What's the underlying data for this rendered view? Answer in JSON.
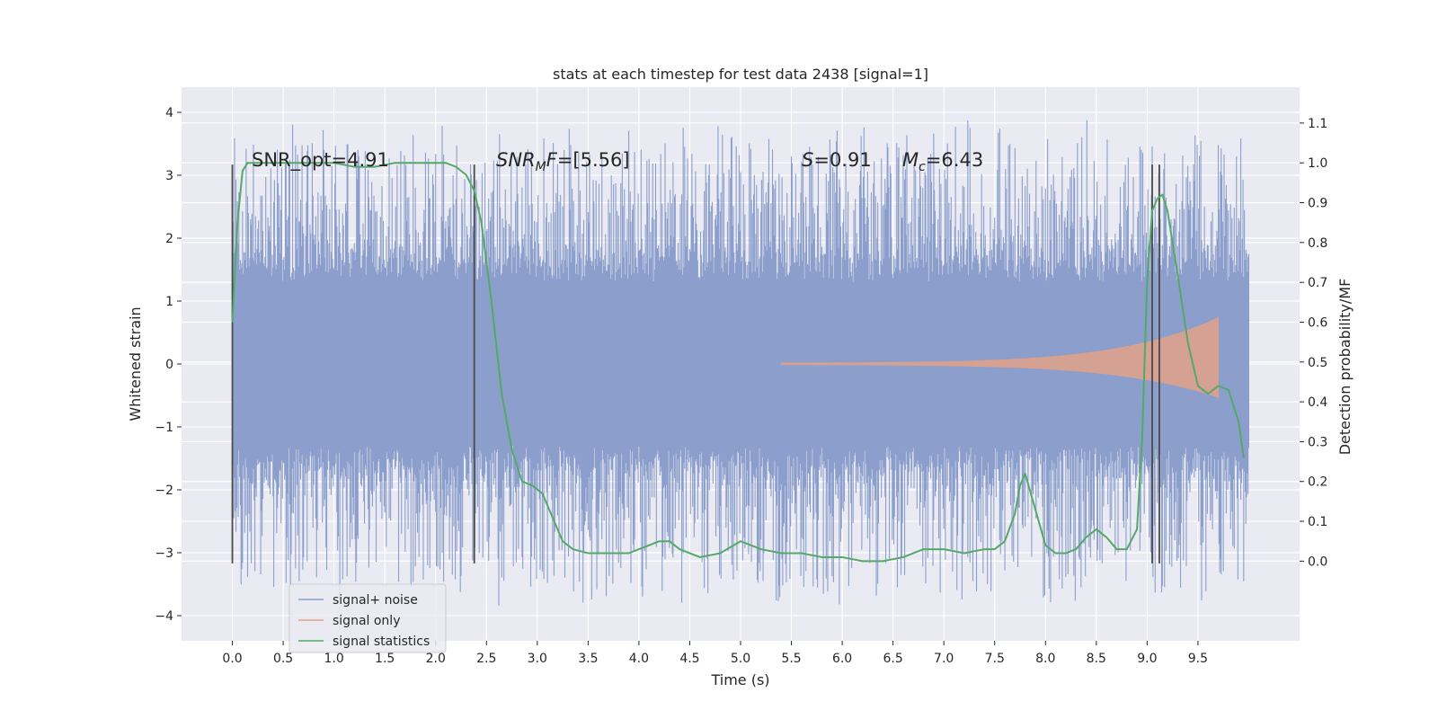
{
  "chart_data": {
    "type": "line",
    "title": "stats at each timestep for test data 2438 [signal=1]",
    "xlabel": "Time (s)",
    "ylabel": "Whitened strain",
    "y2label": "Detection probability/MF",
    "xlim": [
      -0.5,
      10.5
    ],
    "ylim": [
      -4.4,
      4.4
    ],
    "y2lim": [
      -0.2,
      1.19
    ],
    "xticks": [
      0.0,
      0.5,
      1.0,
      1.5,
      2.0,
      2.5,
      3.0,
      3.5,
      4.0,
      4.5,
      5.0,
      5.5,
      6.0,
      6.5,
      7.0,
      7.5,
      8.0,
      8.5,
      9.0,
      9.5
    ],
    "xtick_labels": [
      "0.0",
      "0.5",
      "1.0",
      "1.5",
      "2.0",
      "2.5",
      "3.0",
      "3.5",
      "4.0",
      "4.5",
      "5.0",
      "5.5",
      "6.0",
      "6.5",
      "7.0",
      "7.5",
      "8.0",
      "8.5",
      "9.0",
      "9.5"
    ],
    "yticks": [
      4,
      3,
      2,
      1,
      0,
      -1,
      -2,
      -3,
      -4
    ],
    "ytick_labels": [
      "4",
      "3",
      "2",
      "1",
      "0",
      "−1",
      "−2",
      "−3",
      "−4"
    ],
    "y2ticks": [
      1.1,
      1.0,
      0.9,
      0.8,
      0.7,
      0.6,
      0.5,
      0.4,
      0.3,
      0.2,
      0.1,
      0.0
    ],
    "y2tick_labels": [
      "1.1",
      "1.0",
      "0.9",
      "0.8",
      "0.7",
      "0.6",
      "0.5",
      "0.4",
      "0.3",
      "0.2",
      "0.1",
      "0.0"
    ],
    "grid": true,
    "legend_position": "bottom-left",
    "annotations": {
      "snr_opt": "SNR_opt=4.91",
      "snr_mf_base": "SNR",
      "snr_mf_sub": "M",
      "snr_mf_tail": "F",
      "snr_mf_value": "=[5.56]",
      "s_symbol": "S",
      "s_value": "=0.91",
      "mc_base": "M",
      "mc_sub": "c",
      "mc_value": "=6.43"
    },
    "markers_x": [
      0.0,
      2.38,
      9.05,
      9.12
    ],
    "series": [
      {
        "name": "signal+ noise",
        "color": "#8c9fcc",
        "axis": "left",
        "style": "noise",
        "x_range": [
          0.0,
          10.0
        ],
        "envelope": [
          -1.3,
          1.3
        ],
        "extreme_range": [
          -4.0,
          4.05
        ]
      },
      {
        "name": "signal only",
        "color": "#e1a187",
        "axis": "left",
        "style": "chirp",
        "x_range": [
          5.4,
          9.7
        ],
        "peak_amplitude": 0.6
      },
      {
        "name": "signal statistics",
        "color": "#55a868",
        "axis": "right",
        "style": "line",
        "x": [
          0.0,
          0.05,
          0.1,
          0.15,
          0.2,
          0.3,
          0.5,
          0.8,
          1.0,
          1.2,
          1.4,
          1.6,
          1.8,
          2.0,
          2.1,
          2.2,
          2.3,
          2.38,
          2.45,
          2.55,
          2.65,
          2.75,
          2.85,
          2.95,
          3.05,
          3.15,
          3.25,
          3.35,
          3.5,
          3.7,
          3.9,
          4.0,
          4.1,
          4.2,
          4.3,
          4.4,
          4.6,
          4.8,
          5.0,
          5.2,
          5.4,
          5.6,
          5.8,
          6.0,
          6.2,
          6.4,
          6.6,
          6.8,
          7.0,
          7.2,
          7.4,
          7.5,
          7.6,
          7.7,
          7.75,
          7.8,
          7.9,
          8.0,
          8.1,
          8.2,
          8.3,
          8.4,
          8.5,
          8.6,
          8.7,
          8.8,
          8.9,
          8.95,
          9.0,
          9.05,
          9.1,
          9.15,
          9.2,
          9.3,
          9.4,
          9.5,
          9.6,
          9.7,
          9.8,
          9.9,
          9.95
        ],
        "y": [
          0.6,
          0.85,
          0.98,
          1.0,
          1.0,
          1.0,
          1.0,
          1.0,
          1.0,
          0.99,
          0.99,
          1.0,
          1.0,
          1.0,
          1.0,
          0.99,
          0.97,
          0.93,
          0.85,
          0.65,
          0.42,
          0.28,
          0.2,
          0.19,
          0.17,
          0.11,
          0.05,
          0.03,
          0.02,
          0.02,
          0.02,
          0.03,
          0.04,
          0.05,
          0.05,
          0.03,
          0.01,
          0.02,
          0.05,
          0.03,
          0.02,
          0.02,
          0.01,
          0.01,
          0.0,
          0.0,
          0.01,
          0.03,
          0.03,
          0.02,
          0.03,
          0.03,
          0.05,
          0.12,
          0.19,
          0.22,
          0.13,
          0.04,
          0.02,
          0.02,
          0.03,
          0.06,
          0.08,
          0.06,
          0.03,
          0.03,
          0.08,
          0.3,
          0.7,
          0.88,
          0.91,
          0.92,
          0.88,
          0.72,
          0.55,
          0.44,
          0.42,
          0.44,
          0.43,
          0.35,
          0.26
        ]
      }
    ]
  }
}
